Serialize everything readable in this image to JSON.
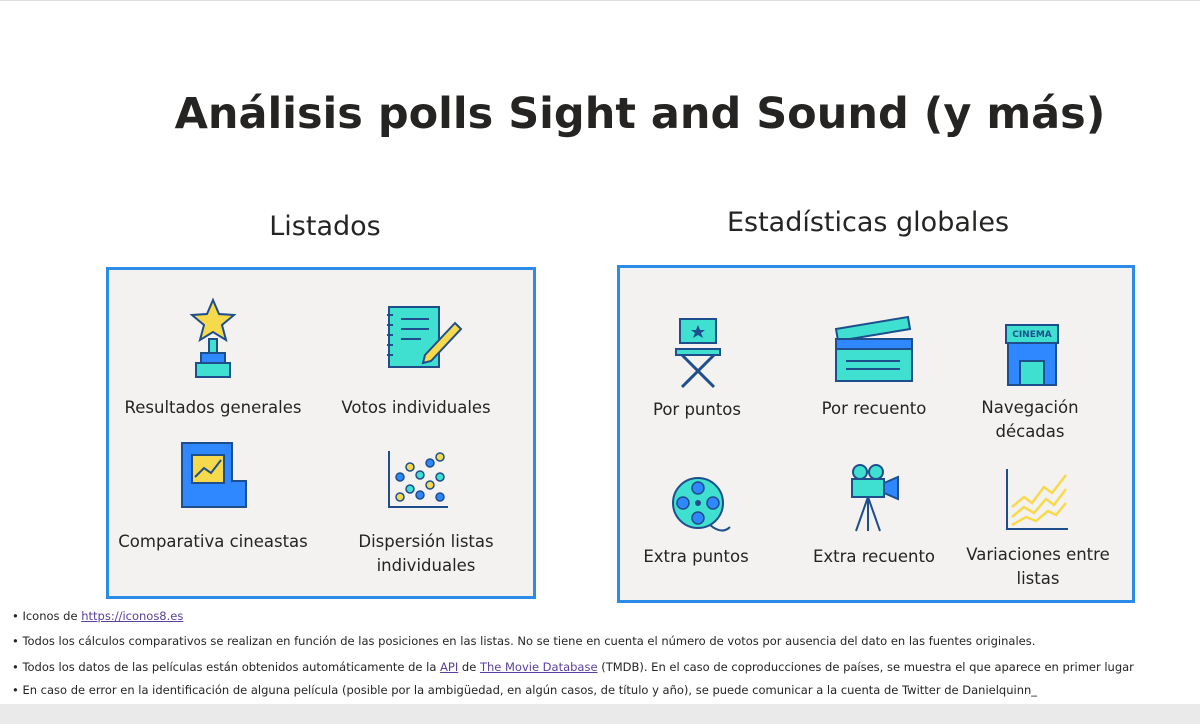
{
  "title": "Análisis polls Sight and Sound (y más)",
  "sections": [
    {
      "title": "Listados",
      "items": [
        "Resultados generales",
        "Votos individuales",
        "Comparativa cineastas",
        "Dispersión listas individuales"
      ]
    },
    {
      "title": "Estadísticas globales",
      "items": [
        "Por puntos",
        "Por recuento",
        "Navegación décadas",
        "Extra puntos",
        "Extra recuento",
        "Variaciones entre listas"
      ]
    }
  ],
  "notes": [
    [
      "Iconos de ",
      "https://iconos8.es"
    ],
    [
      "Todos los cálculos comparativos se realizan en función de las posiciones en las listas. No se tiene en cuenta el número de votos por ausencia del dato en las fuentes originales."
    ],
    [
      "Todos los datos de las películas están obtenidos automáticamente de la ",
      "API",
      " de ",
      "The Movie Database",
      " (TMDB). En el caso de coproducciones de países, se muestra el que aparece en primer lugar"
    ],
    [
      "En caso de error en la identificación de alguna película (posible por la ambigüedad, en algún casos, de título y año), se puede comunicar a la cuenta de Twitter de Danielquinn_"
    ]
  ]
}
